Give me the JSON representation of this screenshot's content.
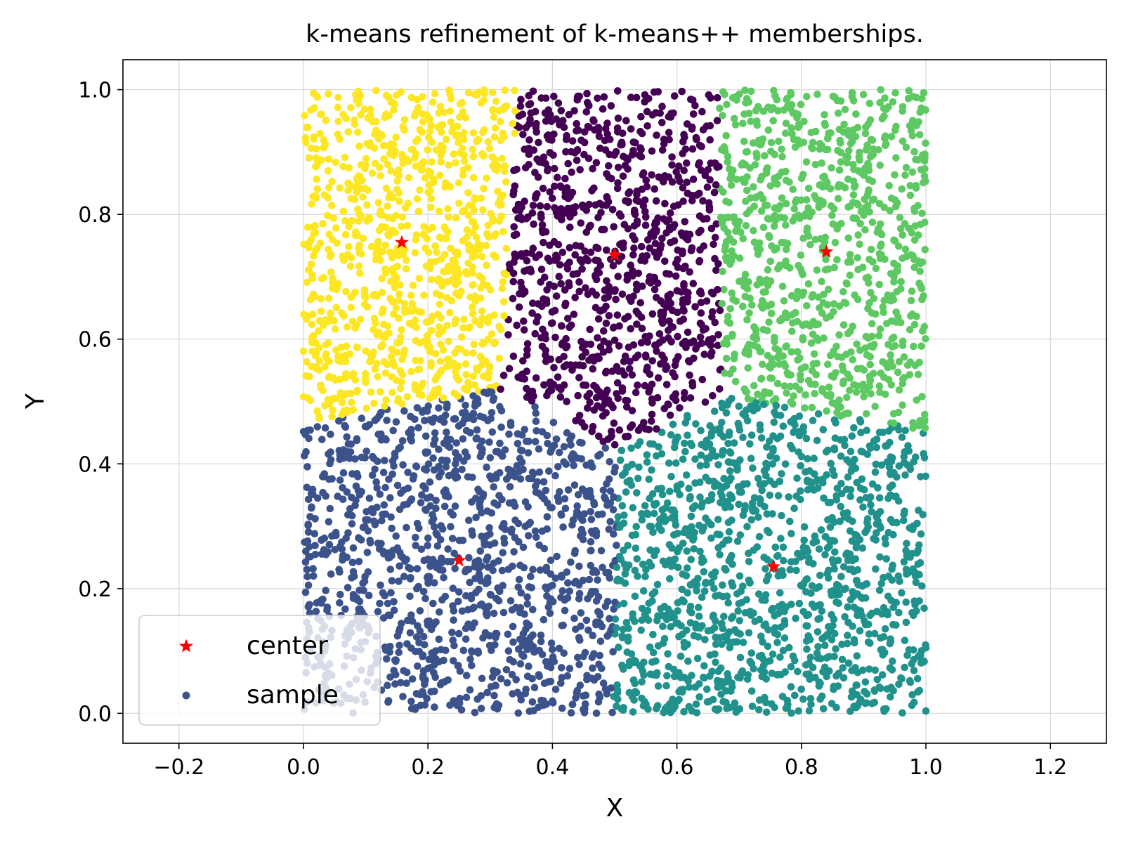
{
  "chart_data": {
    "type": "scatter",
    "title": "k-means refinement of k-means++ memberships.",
    "xlabel": "X",
    "ylabel": "Y",
    "xlim": [
      -0.29,
      1.29
    ],
    "ylim": [
      -0.048,
      1.048
    ],
    "xticks": [
      "−0.2",
      "0.0",
      "0.2",
      "0.4",
      "0.6",
      "0.8",
      "1.0",
      "1.2"
    ],
    "xtick_values": [
      -0.2,
      0.0,
      0.2,
      0.4,
      0.6,
      0.8,
      1.0,
      1.2
    ],
    "yticks": [
      "0.0",
      "0.2",
      "0.4",
      "0.6",
      "0.8",
      "1.0"
    ],
    "ytick_values": [
      0.0,
      0.2,
      0.4,
      0.6,
      0.8,
      1.0
    ],
    "grid": true,
    "legend": {
      "placement": "lower-left",
      "entries": [
        {
          "label": "center",
          "marker": "star",
          "color": "#ff0000"
        },
        {
          "label": "sample",
          "marker": "circle",
          "color": "#3b528b"
        }
      ]
    },
    "samples": {
      "distribution": "uniform over unit square [0,1]x[0,1]",
      "cluster_colors": [
        "#440154",
        "#3b528b",
        "#21918c",
        "#5ec962",
        "#fde725"
      ]
    },
    "centers": [
      {
        "cluster": 0,
        "x": 0.5,
        "y": 0.735,
        "color": "#ff0000"
      },
      {
        "cluster": 1,
        "x": 0.25,
        "y": 0.245,
        "color": "#ff0000"
      },
      {
        "cluster": 2,
        "x": 0.755,
        "y": 0.235,
        "color": "#ff0000"
      },
      {
        "cluster": 3,
        "x": 0.84,
        "y": 0.74,
        "color": "#ff0000"
      },
      {
        "cluster": 4,
        "x": 0.158,
        "y": 0.755,
        "color": "#ff0000"
      }
    ]
  }
}
